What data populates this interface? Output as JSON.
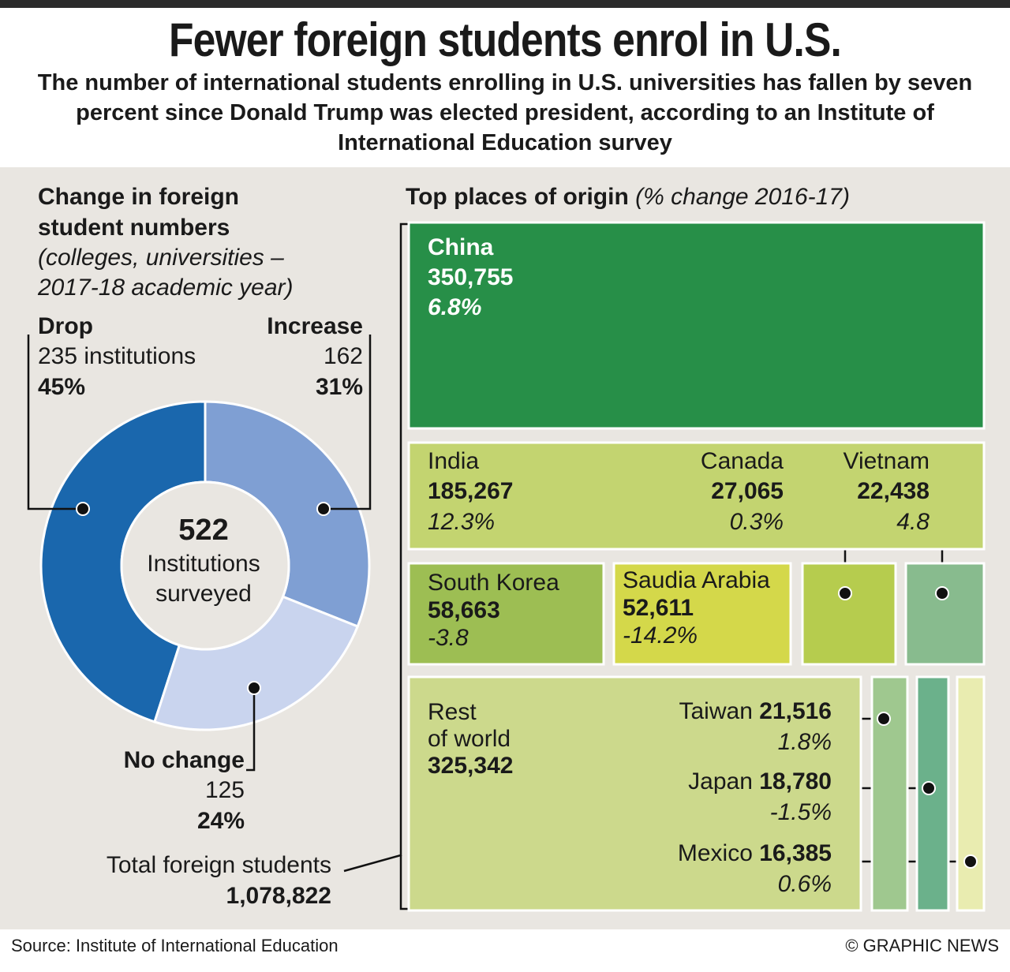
{
  "title": "Fewer foreign students enrol in U.S.",
  "subtitle": "The number of international students enrolling in U.S. universities has fallen by seven percent since Donald Trump was elected president, according to an Institute of International Education survey",
  "left_panel": {
    "heading_line1": "Change in foreign",
    "heading_line2": "student numbers",
    "subheading_line1": "(colleges, universities –",
    "subheading_line2": "2017-18 academic year)",
    "center_value": "522",
    "center_line1": "Institutions",
    "center_line2": "surveyed",
    "total_label": "Total foreign students",
    "total_value": "1,078,822",
    "colors": {
      "drop": "#1a67ad",
      "increase": "#7f9fd3",
      "no_change": "#c9d4ee"
    }
  },
  "donut_labels": {
    "drop": {
      "name": "Drop",
      "count": "235 institutions",
      "pct": "45%"
    },
    "increase": {
      "name": "Increase",
      "count": "162",
      "pct": "31%"
    },
    "no_change": {
      "name": "No change",
      "count": "125",
      "pct": "24%"
    }
  },
  "right_panel": {
    "heading": "Top places of origin",
    "heading_note": "(% change 2016-17)"
  },
  "origins": {
    "china": {
      "name": "China",
      "value": "350,755",
      "change": "6.8%",
      "color": "#278f48"
    },
    "india": {
      "name": "India",
      "value": "185,267",
      "change": "12.3%",
      "color": "#c3d470"
    },
    "canada": {
      "name": "Canada",
      "value": "27,065",
      "change": "0.3%",
      "color": "#b6cc4e"
    },
    "vietnam": {
      "name": "Vietnam",
      "value": "22,438",
      "change": "4.8",
      "color": "#88bb8e"
    },
    "south_korea": {
      "name": "South Korea",
      "value": "58,663",
      "change": "-3.8",
      "color": "#9dbe53"
    },
    "saudi_arabia": {
      "name": "Saudia Arabia",
      "value": "52,611",
      "change": "-14.2%",
      "color": "#d4d84a"
    },
    "rest_of_world": {
      "name_line1": "Rest",
      "name_line2": "of world",
      "value": "325,342",
      "color": "#ccd98c"
    },
    "taiwan": {
      "name": "Taiwan",
      "value": "21,516",
      "change": "1.8%",
      "color": "#9fc88f"
    },
    "japan": {
      "name": "Japan",
      "value": "18,780",
      "change": "-1.5%",
      "color": "#6bb18b"
    },
    "mexico": {
      "name": "Mexico",
      "value": "16,385",
      "change": "0.6%",
      "color": "#e9ecb0"
    }
  },
  "chart_data": [
    {
      "type": "pie",
      "title": "Change in foreign student numbers",
      "subtitle": "(colleges, universities – 2017-18 academic year)",
      "categories": [
        "Drop",
        "Increase",
        "No change"
      ],
      "values": [
        235,
        162,
        125
      ],
      "percentages": [
        45,
        31,
        24
      ],
      "total": 522
    },
    {
      "type": "table",
      "title": "Top places of origin",
      "subtitle": "(% change 2016-17)",
      "categories": [
        "China",
        "India",
        "South Korea",
        "Saudia Arabia",
        "Canada",
        "Vietnam",
        "Taiwan",
        "Japan",
        "Mexico",
        "Rest of world"
      ],
      "values": [
        350755,
        185267,
        58663,
        52611,
        27065,
        22438,
        21516,
        18780,
        16385,
        325342
      ],
      "pct_change": [
        6.8,
        12.3,
        -3.8,
        -14.2,
        0.3,
        4.8,
        1.8,
        -1.5,
        0.6,
        null
      ],
      "total": 1078822
    }
  ]
}
